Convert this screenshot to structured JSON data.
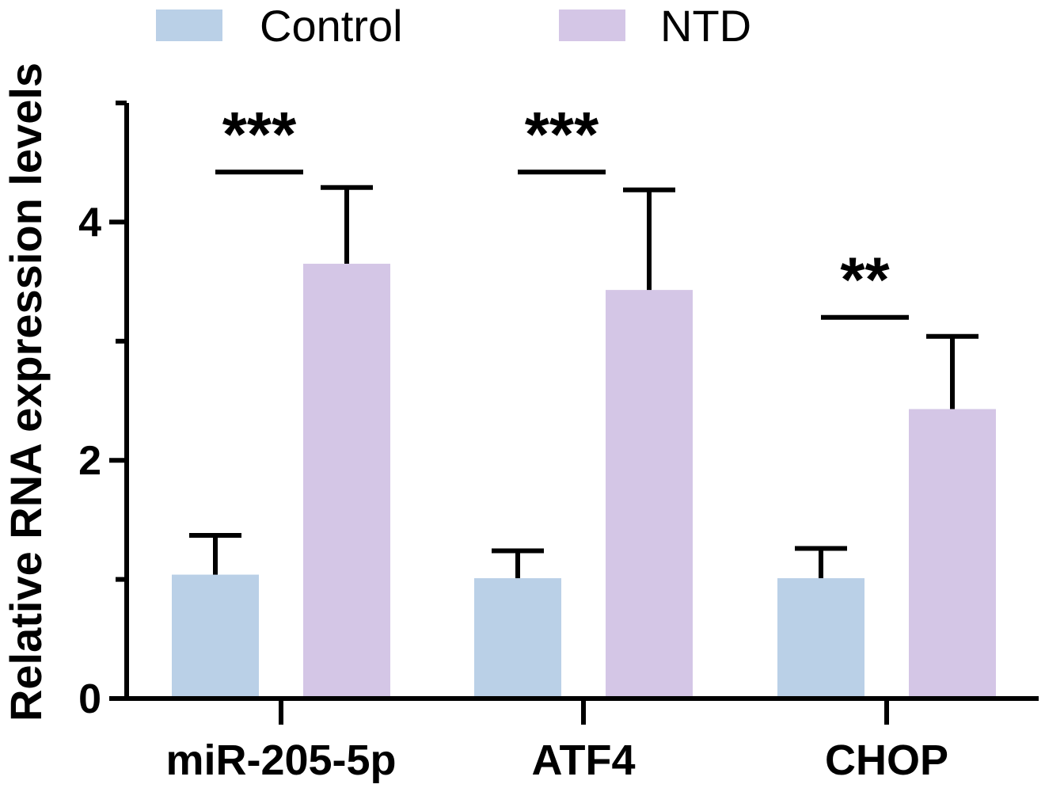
{
  "chart_data": {
    "type": "bar",
    "title": "",
    "xlabel": "",
    "ylabel": "Relative RNA expression levels",
    "ylim": [
      0,
      5
    ],
    "yticks_major": [
      0,
      2,
      4
    ],
    "yticks_minor": [
      1,
      3,
      5
    ],
    "categories": [
      "miR-205-5p",
      "ATF4",
      "CHOP"
    ],
    "series": [
      {
        "name": "Control",
        "color": "#bad0e7",
        "values": [
          1.04,
          1.01,
          1.01
        ],
        "errors": [
          0.33,
          0.23,
          0.25
        ]
      },
      {
        "name": "NTD",
        "color": "#d4c6e6",
        "values": [
          3.65,
          3.43,
          2.43
        ],
        "errors": [
          0.64,
          0.84,
          0.61
        ]
      }
    ],
    "significance": [
      {
        "category": "miR-205-5p",
        "label": "***",
        "level": 4.42
      },
      {
        "category": "ATF4",
        "label": "***",
        "level": 4.42
      },
      {
        "category": "CHOP",
        "label": "**",
        "level": 3.2
      }
    ],
    "legend": {
      "position": "top",
      "entries": [
        "Control",
        "NTD"
      ]
    }
  }
}
